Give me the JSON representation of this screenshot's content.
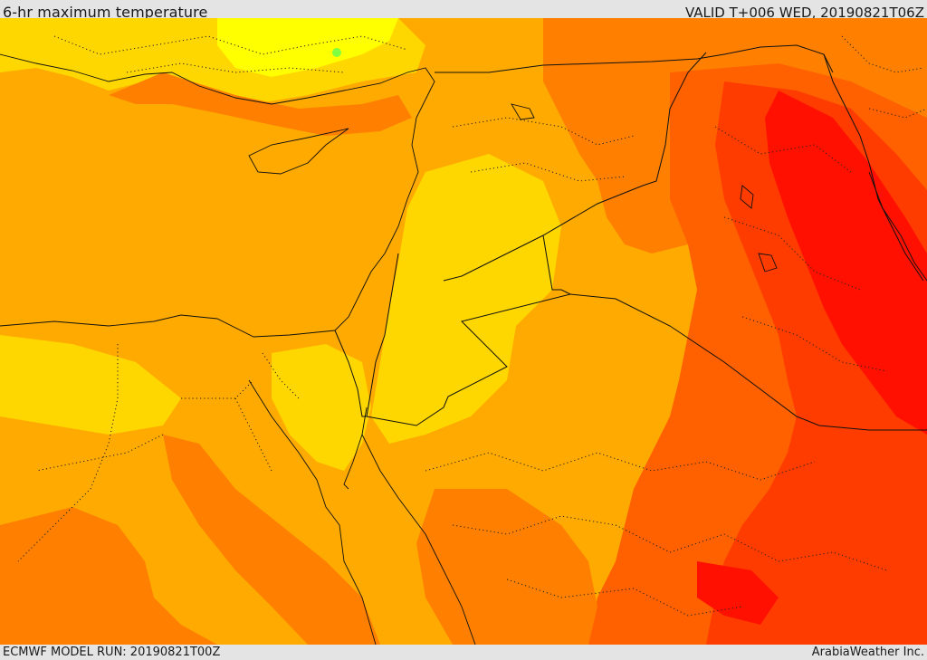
{
  "header": {
    "title": "6-hr maximum temperature",
    "valid": "VALID T+006 WED, 20190821T06Z"
  },
  "footer": {
    "model_run": "ECMWF MODEL RUN: 20190821T00Z",
    "credit": "ArabiaWeather Inc."
  },
  "colors": {
    "yellow_bright": "#ffff00",
    "yellow": "#ffd700",
    "orange_light": "#ffaa00",
    "orange": "#ff8000",
    "orange_red": "#ff6000",
    "red_orange": "#ff3c00",
    "red": "#ff1000",
    "green_spot": "#7fff3f"
  }
}
